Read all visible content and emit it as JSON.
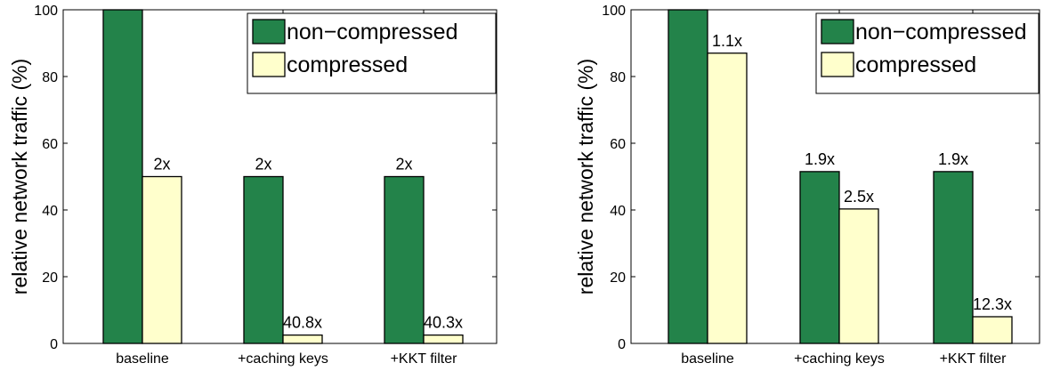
{
  "chart_data": [
    {
      "type": "bar",
      "categories": [
        "baseline",
        "+caching keys",
        "+KKT filter"
      ],
      "ylabel": "relative network traffic (%)",
      "ylim": [
        0,
        100
      ],
      "yticks": [
        0,
        20,
        40,
        60,
        80,
        100
      ],
      "grid": false,
      "legend_position": "top-right",
      "series": [
        {
          "name": "non−compressed",
          "color": "#23834a",
          "values": [
            100,
            50,
            50
          ],
          "labels": [
            "",
            "2x",
            "2x"
          ]
        },
        {
          "name": "compressed",
          "color": "#ffffcc",
          "values": [
            50,
            2.5,
            2.5
          ],
          "labels": [
            "2x",
            "40.8x",
            "40.3x"
          ]
        }
      ]
    },
    {
      "type": "bar",
      "categories": [
        "baseline",
        "+caching keys",
        "+KKT filter"
      ],
      "ylabel": "relative network traffic (%)",
      "ylim": [
        0,
        100
      ],
      "yticks": [
        0,
        20,
        40,
        60,
        80,
        100
      ],
      "grid": false,
      "legend_position": "top-right",
      "series": [
        {
          "name": "non−compressed",
          "color": "#23834a",
          "values": [
            100,
            51.5,
            51.5
          ],
          "labels": [
            "",
            "1.9x",
            "1.9x"
          ]
        },
        {
          "name": "compressed",
          "color": "#ffffcc",
          "values": [
            87,
            40.3,
            8
          ],
          "labels": [
            "1.1x",
            "2.5x",
            "12.3x"
          ]
        }
      ]
    }
  ]
}
